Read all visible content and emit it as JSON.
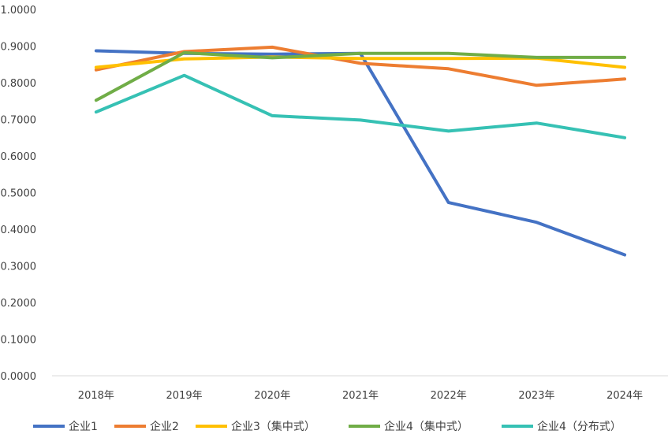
{
  "chart_data": {
    "type": "line",
    "title": "",
    "xlabel": "",
    "ylabel": "",
    "categories": [
      "2018年",
      "2019年",
      "2020年",
      "2021年",
      "2022年",
      "2023年",
      "2024年"
    ],
    "ylim": [
      0,
      1
    ],
    "yticks": [
      "0.0000",
      "0.1000",
      "0.2000",
      "0.3000",
      "0.4000",
      "0.5000",
      "0.6000",
      "0.7000",
      "0.8000",
      "0.9000",
      "1.0000"
    ],
    "grid": false,
    "legend": "bottom",
    "series": [
      {
        "name": "企业1",
        "color": "#4472C4",
        "values": [
          0.887,
          0.88,
          0.878,
          0.88,
          0.473,
          0.419,
          0.33
        ]
      },
      {
        "name": "企业2",
        "color": "#ED7D31",
        "values": [
          0.835,
          0.885,
          0.897,
          0.853,
          0.838,
          0.793,
          0.81
        ]
      },
      {
        "name": "企业3（集中式）",
        "color": "#FFC000",
        "values": [
          0.842,
          0.865,
          0.87,
          0.866,
          0.866,
          0.867,
          0.842
        ]
      },
      {
        "name": "企业4（集中式）",
        "color": "#70AD47",
        "values": [
          0.752,
          0.882,
          0.868,
          0.88,
          0.88,
          0.869,
          0.869
        ]
      },
      {
        "name": "企业4（分布式）",
        "color": "#36C1B4",
        "values": [
          0.72,
          0.82,
          0.71,
          0.698,
          0.668,
          0.69,
          0.65
        ]
      }
    ]
  }
}
